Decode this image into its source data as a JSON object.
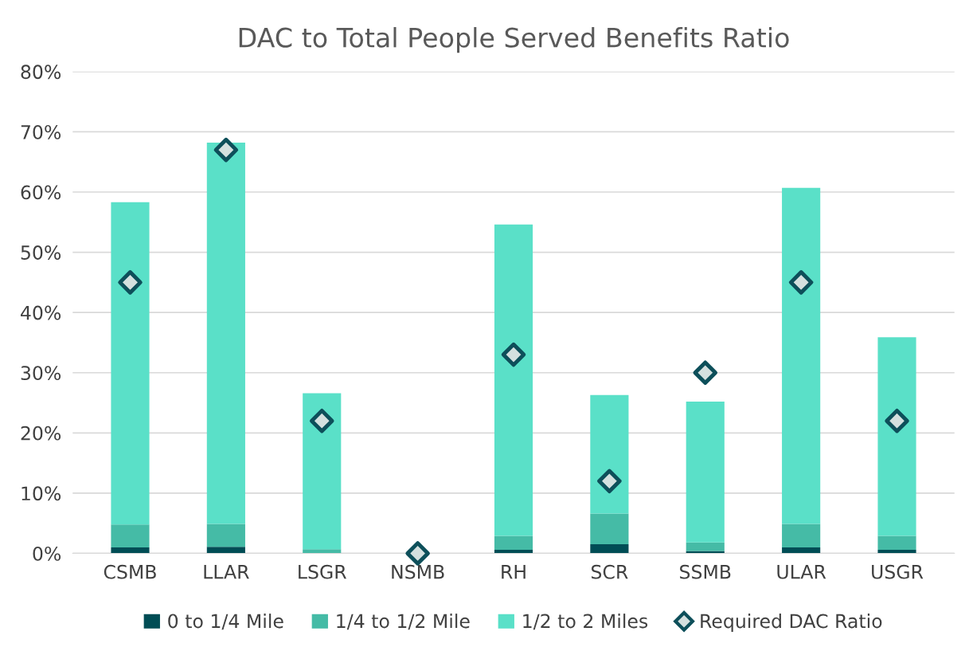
{
  "chart_data": {
    "type": "bar",
    "title": "DAC to Total People Served Benefits Ratio",
    "categories": [
      "CSMB",
      "LLAR",
      "LSGR",
      "NSMB",
      "RH",
      "SCR",
      "SSMB",
      "ULAR",
      "USGR"
    ],
    "stacked": true,
    "series": [
      {
        "name": "0 to 1/4 Mile",
        "color": "#004d55",
        "values": [
          1.0,
          1.1,
          null,
          0,
          0.6,
          1.5,
          0.4,
          1.0,
          0.6
        ]
      },
      {
        "name": "1/4 to 1/2 Mile",
        "color": "#45bba6",
        "values": [
          3.8,
          3.8,
          0.7,
          0,
          2.3,
          5.1,
          1.4,
          3.9,
          2.3
        ]
      },
      {
        "name": "1/2 to 2 Miles",
        "color": "#5ae0c8",
        "values": [
          53.5,
          63.3,
          25.9,
          0,
          51.7,
          19.7,
          23.4,
          55.8,
          33.0
        ]
      },
      {
        "name": "Required DAC Ratio",
        "type": "scatter",
        "marker": "diamond",
        "color": "#0d4f5a",
        "values": [
          45,
          67,
          22,
          0,
          33,
          12,
          30,
          45,
          22
        ]
      }
    ],
    "ylim": [
      0,
      80
    ],
    "yticks": [
      {
        "value": 0,
        "label": "0%"
      },
      {
        "value": 10,
        "label": "10%"
      },
      {
        "value": 20,
        "label": "20%"
      },
      {
        "value": 30,
        "label": "30%"
      },
      {
        "value": 40,
        "label": "40%"
      },
      {
        "value": 50,
        "label": "50%"
      },
      {
        "value": 60,
        "label": "60%"
      },
      {
        "value": 70,
        "label": "70%"
      },
      {
        "value": 80,
        "label": "80%"
      }
    ],
    "grid": "y",
    "legend": "bottom"
  }
}
